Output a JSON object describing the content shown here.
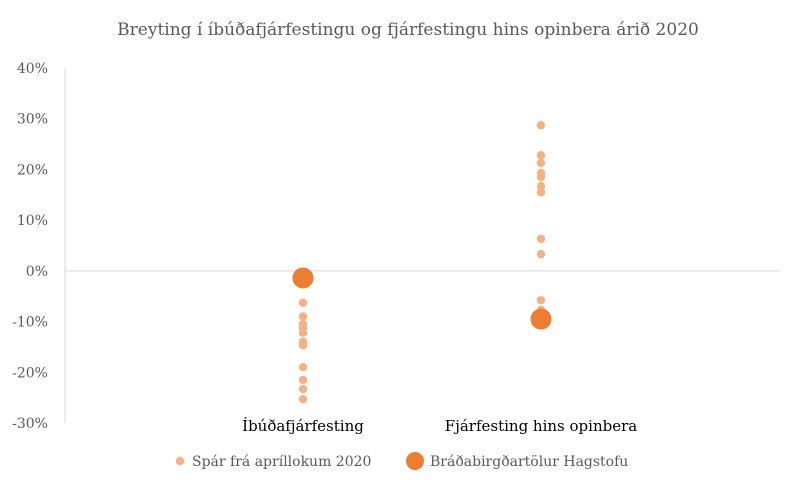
{
  "chart_data": {
    "type": "scatter",
    "title": "Breyting í íbúðafjárfestingu og fjárfestingu hins opinbera árið 2020",
    "xlabel": "",
    "ylabel": "",
    "categories": [
      "Íbúðafjárfesting",
      "Fjárfesting hins opinbera"
    ],
    "ylim": [
      -0.3,
      0.4
    ],
    "yticks": [
      "40%",
      "30%",
      "20%",
      "10%",
      "0%",
      "-10%",
      "-20%",
      "-30%"
    ],
    "series": [
      {
        "name": "Spár frá apríllokum 2020",
        "color": "#f4b183",
        "points": [
          {
            "category": 0,
            "value": -0.063
          },
          {
            "category": 0,
            "value": -0.09
          },
          {
            "category": 0,
            "value": -0.105
          },
          {
            "category": 0,
            "value": -0.113
          },
          {
            "category": 0,
            "value": -0.122
          },
          {
            "category": 0,
            "value": -0.14
          },
          {
            "category": 0,
            "value": -0.147
          },
          {
            "category": 0,
            "value": -0.19
          },
          {
            "category": 0,
            "value": -0.215
          },
          {
            "category": 0,
            "value": -0.233
          },
          {
            "category": 0,
            "value": -0.253
          },
          {
            "category": 1,
            "value": 0.287
          },
          {
            "category": 1,
            "value": 0.228
          },
          {
            "category": 1,
            "value": 0.213
          },
          {
            "category": 1,
            "value": 0.193
          },
          {
            "category": 1,
            "value": 0.185
          },
          {
            "category": 1,
            "value": 0.167
          },
          {
            "category": 1,
            "value": 0.155
          },
          {
            "category": 1,
            "value": 0.063
          },
          {
            "category": 1,
            "value": 0.033
          },
          {
            "category": 1,
            "value": -0.058
          },
          {
            "category": 1,
            "value": -0.077
          }
        ]
      },
      {
        "name": "Bráðabirgðartölur Hagstofu",
        "color": "#ed7d31",
        "points": [
          {
            "category": 0,
            "value": -0.014
          },
          {
            "category": 1,
            "value": -0.095
          }
        ]
      }
    ],
    "grid": false,
    "legend": "bottom"
  }
}
